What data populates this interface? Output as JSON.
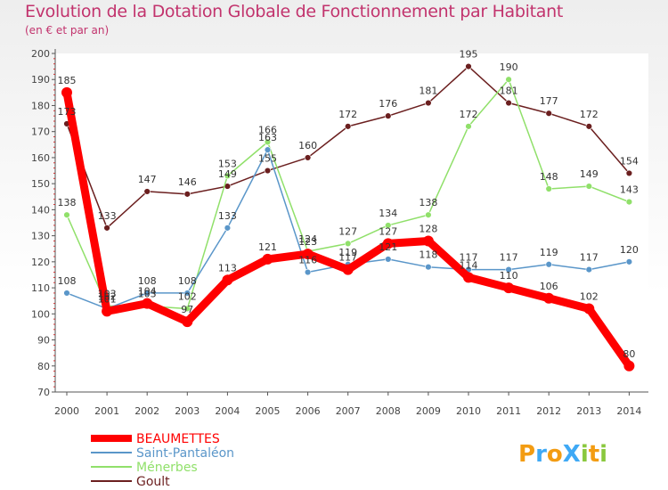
{
  "header": {
    "title": "Evolution de la Dotation Globale de Fonctionnement par Habitant",
    "subtitle": "(en € et par an)"
  },
  "brand": {
    "name": "ProXiti"
  },
  "colors": {
    "title": "#c2336d",
    "beaumettes": "#ff0000",
    "saint_pantaleon": "#5a96c9",
    "menerbes": "#90e06a",
    "goult": "#6b1f1f"
  },
  "chart_data": {
    "type": "line",
    "title": "Evolution de la Dotation Globale de Fonctionnement par Habitant",
    "subtitle": "(en € et par an)",
    "xlabel": "",
    "ylabel": "",
    "x": [
      2000,
      2001,
      2002,
      2003,
      2004,
      2005,
      2006,
      2007,
      2008,
      2009,
      2010,
      2011,
      2012,
      2013,
      2014
    ],
    "ylim": [
      70,
      200
    ],
    "yticks": [
      70,
      80,
      90,
      100,
      110,
      120,
      130,
      140,
      150,
      160,
      170,
      180,
      190,
      200
    ],
    "grid": false,
    "legend_position": "bottom-left",
    "series": [
      {
        "name": "Goult",
        "key": "goult",
        "values": [
          173,
          133,
          147,
          146,
          149,
          155,
          160,
          172,
          176,
          181,
          195,
          181,
          177,
          172,
          154
        ]
      },
      {
        "name": "Ménerbes",
        "key": "menerbes",
        "values": [
          138,
          103,
          103,
          102,
          153,
          166,
          124,
          127,
          134,
          138,
          172,
          190,
          148,
          149,
          143
        ]
      },
      {
        "name": "Saint-Pantaléon",
        "key": "saint_pantaleon",
        "values": [
          108,
          102,
          108,
          108,
          133,
          163,
          116,
          119,
          121,
          118,
          117,
          117,
          119,
          117,
          120
        ]
      },
      {
        "name": "BEAUMETTES",
        "key": "beaumettes",
        "values": [
          185,
          101,
          104,
          97,
          113,
          121,
          123,
          117,
          127,
          128,
          114,
          110,
          106,
          102,
          80
        ]
      }
    ],
    "legend": [
      "BEAUMETTES",
      "Saint-Pantaléon",
      "Ménerbes",
      "Goult"
    ]
  }
}
